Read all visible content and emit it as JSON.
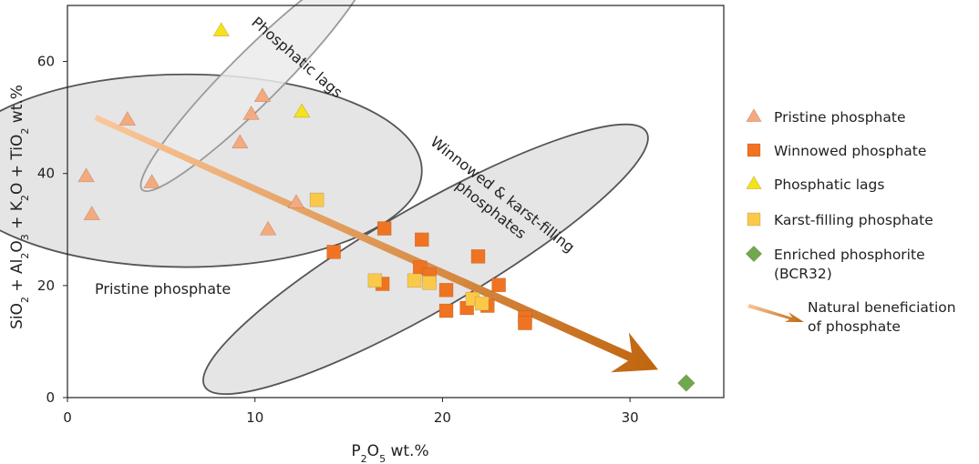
{
  "chart_data": {
    "type": "scatter",
    "xlabel": {
      "base": "P",
      "sub": "2",
      "base2": "O",
      "sub2": "5",
      "rest": " wt.%"
    },
    "ylabel": [
      "SiO",
      "2",
      " + Al",
      "2",
      "O",
      "3",
      " + K",
      "2",
      "O + TiO",
      "2",
      "  wt.%"
    ],
    "xlim": [
      0,
      35
    ],
    "ylim": [
      0,
      70
    ],
    "xticks": [
      0,
      10,
      20,
      30
    ],
    "yticks": [
      0,
      20,
      40,
      60
    ],
    "grid": false,
    "legend_position": "right",
    "series": [
      {
        "name": "Pristine phosphate",
        "marker": "triangle",
        "color": "#f4a97e",
        "points": [
          [
            1.0,
            39.5
          ],
          [
            1.3,
            32.7
          ],
          [
            3.2,
            49.6
          ],
          [
            4.5,
            38.4
          ],
          [
            9.2,
            45.5
          ],
          [
            9.8,
            50.6
          ],
          [
            10.4,
            53.8
          ],
          [
            10.7,
            30.0
          ],
          [
            12.2,
            34.8
          ]
        ]
      },
      {
        "name": "Winnowed phosphate",
        "marker": "square",
        "color": "#f07322",
        "points": [
          [
            14.2,
            26.0
          ],
          [
            16.8,
            20.3
          ],
          [
            16.9,
            30.2
          ],
          [
            18.8,
            23.2
          ],
          [
            18.9,
            28.2
          ],
          [
            19.3,
            21.9
          ],
          [
            20.2,
            19.2
          ],
          [
            20.2,
            15.5
          ],
          [
            21.3,
            16.0
          ],
          [
            21.9,
            25.2
          ],
          [
            22.4,
            16.4
          ],
          [
            23.0,
            20.1
          ],
          [
            24.4,
            14.3
          ],
          [
            24.4,
            13.3
          ]
        ]
      },
      {
        "name": "Phosphatic lags",
        "marker": "triangle",
        "color": "#f5e21a",
        "points": [
          [
            8.2,
            65.5
          ],
          [
            12.5,
            51.0
          ]
        ]
      },
      {
        "name": "Karst-filling phosphate",
        "marker": "square",
        "color": "#fbc94a",
        "points": [
          [
            13.3,
            35.3
          ],
          [
            16.4,
            20.9
          ],
          [
            18.5,
            20.9
          ],
          [
            19.3,
            20.5
          ],
          [
            21.6,
            17.6
          ],
          [
            22.1,
            16.8
          ]
        ]
      },
      {
        "name": "Enriched phosphorite (BCR32)",
        "marker": "diamond",
        "color": "#6fa84f",
        "points": [
          [
            33.0,
            2.6
          ]
        ]
      }
    ],
    "legend": [
      {
        "label": [
          "Pristine phosphate"
        ],
        "marker": "triangle",
        "color": "#f4a97e"
      },
      {
        "label": [
          "Winnowed phosphate"
        ],
        "marker": "square",
        "color": "#f07322"
      },
      {
        "label": [
          "Phosphatic lags"
        ],
        "marker": "triangle",
        "color": "#f5e21a"
      },
      {
        "label": [
          "Karst-filling phosphate"
        ],
        "marker": "square",
        "color": "#fbc94a"
      },
      {
        "label": [
          "Enriched phosphorite",
          "(BCR32)"
        ],
        "marker": "diamond",
        "color": "#6fa84f"
      },
      {
        "label": [
          "Natural beneficiation",
          "of phosphate"
        ],
        "marker": "arrow",
        "color": "#d9792a"
      }
    ],
    "annotations": [
      {
        "text": [
          "Pristine phosphate"
        ]
      },
      {
        "text": [
          "Phosphatic lags"
        ]
      },
      {
        "text": [
          "Winnowed & karst-filling",
          "phosphates"
        ]
      }
    ],
    "trend_arrow": {
      "from": [
        1.5,
        50.0
      ],
      "to": [
        31.5,
        5.0
      ],
      "color_start": "#fbc79a",
      "color_end": "#c0650f"
    },
    "fields": [
      {
        "name": "pristine-field",
        "center": [
          6.3,
          40.5
        ],
        "rx": 12.6,
        "ry": 17.2,
        "angle": 0
      },
      {
        "name": "lags-field",
        "center": [
          10.0,
          57.2
        ],
        "rx": 8.5,
        "ry": 4.6,
        "angle": -45
      },
      {
        "name": "winnowed-field",
        "center": [
          19.1,
          24.7
        ],
        "rx": 13.6,
        "ry": 9.2,
        "angle": -30
      }
    ]
  }
}
